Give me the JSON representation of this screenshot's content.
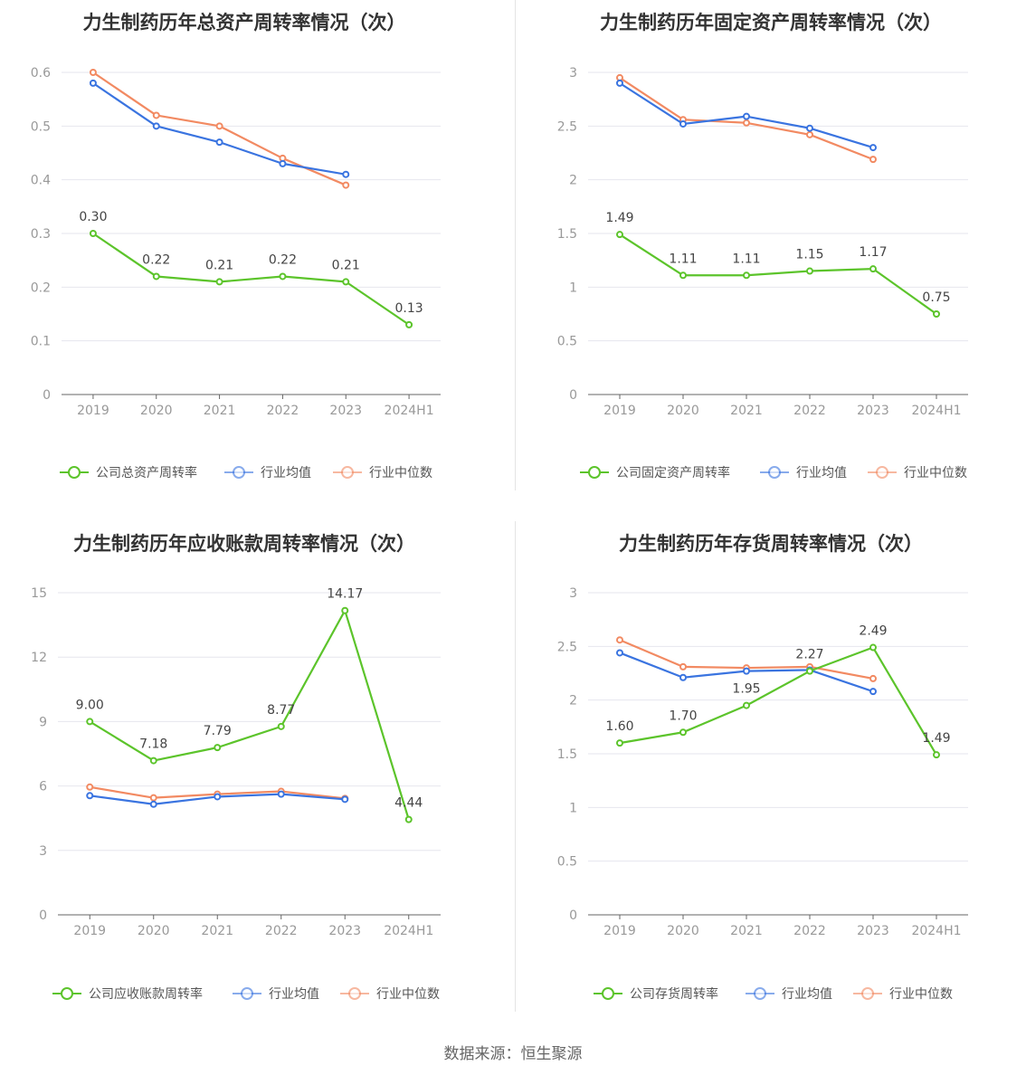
{
  "colors": {
    "company": "#5cc42b",
    "avg": "#3a74e0",
    "median": "#f28a62",
    "grid": "#e6e6ee",
    "axis": "#666666"
  },
  "source": "数据来源：恒生聚源",
  "chart_data": [
    {
      "type": "line",
      "title": "力生制药历年总资产周转率情况（次）",
      "categories": [
        "2019",
        "2020",
        "2021",
        "2022",
        "2023",
        "2024H1"
      ],
      "ylim": [
        0,
        0.6
      ],
      "yticks": [
        "0",
        "0.1",
        "0.2",
        "0.3",
        "0.4",
        "0.5",
        "0.6"
      ],
      "series": [
        {
          "name": "公司总资产周转率",
          "values": [
            0.3,
            0.22,
            0.21,
            0.22,
            0.21,
            0.13
          ],
          "labels": [
            "0.30",
            "0.22",
            "0.21",
            "0.22",
            "0.21",
            "0.13"
          ]
        },
        {
          "name": "行业均值",
          "values": [
            0.58,
            0.5,
            0.47,
            0.43,
            0.41,
            null
          ]
        },
        {
          "name": "行业中位数",
          "values": [
            0.6,
            0.52,
            0.5,
            0.44,
            0.39,
            null
          ]
        }
      ]
    },
    {
      "type": "line",
      "title": "力生制药历年固定资产周转率情况（次）",
      "categories": [
        "2019",
        "2020",
        "2021",
        "2022",
        "2023",
        "2024H1"
      ],
      "ylim": [
        0,
        3
      ],
      "yticks": [
        "0",
        "0.5",
        "1",
        "1.5",
        "2",
        "2.5",
        "3"
      ],
      "series": [
        {
          "name": "公司固定资产周转率",
          "values": [
            1.49,
            1.11,
            1.11,
            1.15,
            1.17,
            0.75
          ],
          "labels": [
            "1.49",
            "1.11",
            "1.11",
            "1.15",
            "1.17",
            "0.75"
          ]
        },
        {
          "name": "行业均值",
          "values": [
            2.9,
            2.52,
            2.59,
            2.48,
            2.3,
            null
          ]
        },
        {
          "name": "行业中位数",
          "values": [
            2.95,
            2.56,
            2.53,
            2.42,
            2.19,
            null
          ]
        }
      ]
    },
    {
      "type": "line",
      "title": "力生制药历年应收账款周转率情况（次）",
      "categories": [
        "2019",
        "2020",
        "2021",
        "2022",
        "2023",
        "2024H1"
      ],
      "ylim": [
        0,
        15
      ],
      "yticks": [
        "0",
        "3",
        "6",
        "9",
        "12",
        "15"
      ],
      "series": [
        {
          "name": "公司应收账款周转率",
          "values": [
            9.0,
            7.18,
            7.79,
            8.77,
            14.17,
            4.44
          ],
          "labels": [
            "9.00",
            "7.18",
            "7.79",
            "8.77",
            "14.17",
            "4.44"
          ]
        },
        {
          "name": "行业均值",
          "values": [
            5.55,
            5.15,
            5.5,
            5.62,
            5.38,
            null
          ]
        },
        {
          "name": "行业中位数",
          "values": [
            5.95,
            5.45,
            5.62,
            5.75,
            5.42,
            null
          ]
        }
      ]
    },
    {
      "type": "line",
      "title": "力生制药历年存货周转率情况（次）",
      "categories": [
        "2019",
        "2020",
        "2021",
        "2022",
        "2023",
        "2024H1"
      ],
      "ylim": [
        0,
        3
      ],
      "yticks": [
        "0",
        "0.5",
        "1",
        "1.5",
        "2",
        "2.5",
        "3"
      ],
      "series": [
        {
          "name": "公司存货周转率",
          "values": [
            1.6,
            1.7,
            1.95,
            2.27,
            2.49,
            1.49
          ],
          "labels": [
            "1.60",
            "1.70",
            "1.95",
            "2.27",
            "2.49",
            "1.49"
          ]
        },
        {
          "name": "行业均值",
          "values": [
            2.44,
            2.21,
            2.27,
            2.28,
            2.08,
            null
          ]
        },
        {
          "name": "行业中位数",
          "values": [
            2.56,
            2.31,
            2.3,
            2.31,
            2.2,
            null
          ]
        }
      ]
    }
  ]
}
